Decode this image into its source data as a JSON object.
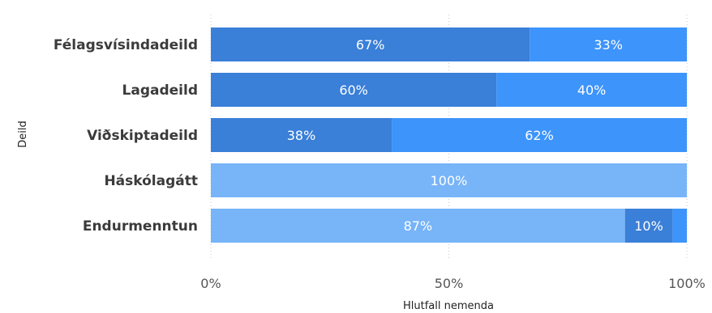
{
  "chart_data": {
    "type": "bar",
    "orientation": "horizontal",
    "stacked": true,
    "xlabel": "Hlutfall nemenda",
    "ylabel": "Deild",
    "xlim": [
      0,
      100
    ],
    "x_ticks": [
      "0%",
      "50%",
      "100%"
    ],
    "grid": "vertical dotted",
    "categories": [
      "Félagsvísindadeild",
      "Lagadeild",
      "Viðskiptadeild",
      "Háskólagátt",
      "Endurmenntun"
    ],
    "bars": [
      {
        "category": "Félagsvísindadeild",
        "segments": [
          {
            "value": 67,
            "label": "67%",
            "color": "#3a7fd8"
          },
          {
            "value": 33,
            "label": "33%",
            "color": "#3d94fa"
          }
        ]
      },
      {
        "category": "Lagadeild",
        "segments": [
          {
            "value": 60,
            "label": "60%",
            "color": "#3a7fd8"
          },
          {
            "value": 40,
            "label": "40%",
            "color": "#3d94fa"
          }
        ]
      },
      {
        "category": "Viðskiptadeild",
        "segments": [
          {
            "value": 38,
            "label": "38%",
            "color": "#3a7fd8"
          },
          {
            "value": 62,
            "label": "62%",
            "color": "#3d94fa"
          }
        ]
      },
      {
        "category": "Háskólagátt",
        "segments": [
          {
            "value": 100,
            "label": "100%",
            "color": "#77b4f8"
          }
        ]
      },
      {
        "category": "Endurmenntun",
        "segments": [
          {
            "value": 87,
            "label": "87%",
            "color": "#77b4f8"
          },
          {
            "value": 10,
            "label": "10%",
            "color": "#3a7fd8"
          },
          {
            "value": 3,
            "label": "",
            "color": "#3d94fa"
          }
        ]
      }
    ]
  }
}
